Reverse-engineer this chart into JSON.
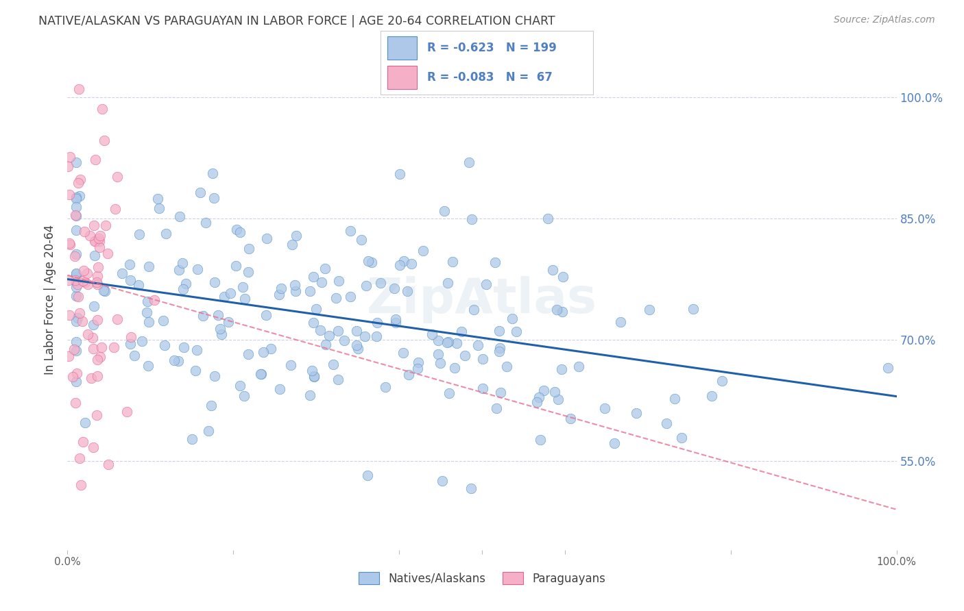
{
  "title": "NATIVE/ALASKAN VS PARAGUAYAN IN LABOR FORCE | AGE 20-64 CORRELATION CHART",
  "source": "Source: ZipAtlas.com",
  "ylabel": "In Labor Force | Age 20-64",
  "y_tick_labels": [
    "100.0%",
    "85.0%",
    "70.0%",
    "55.0%"
  ],
  "y_tick_values": [
    1.0,
    0.85,
    0.7,
    0.55
  ],
  "xlim": [
    0.0,
    1.0
  ],
  "ylim": [
    0.44,
    1.06
  ],
  "blue_R": -0.623,
  "blue_N": 199,
  "pink_R": -0.083,
  "pink_N": 67,
  "blue_color": "#adc8e8",
  "blue_edge_color": "#5090c8",
  "blue_line_color": "#2060a8",
  "pink_color": "#f5b0c8",
  "pink_edge_color": "#e06090",
  "pink_line_color": "#e87090",
  "background_color": "#ffffff",
  "grid_color": "#d0d0e0",
  "watermark": "ZipAtlas",
  "title_color": "#404040",
  "source_color": "#909090",
  "right_label_color": "#5080c0",
  "blue_line_y0": 0.775,
  "blue_line_y1": 0.63,
  "pink_line_y0": 0.78,
  "pink_line_y1": 0.49
}
